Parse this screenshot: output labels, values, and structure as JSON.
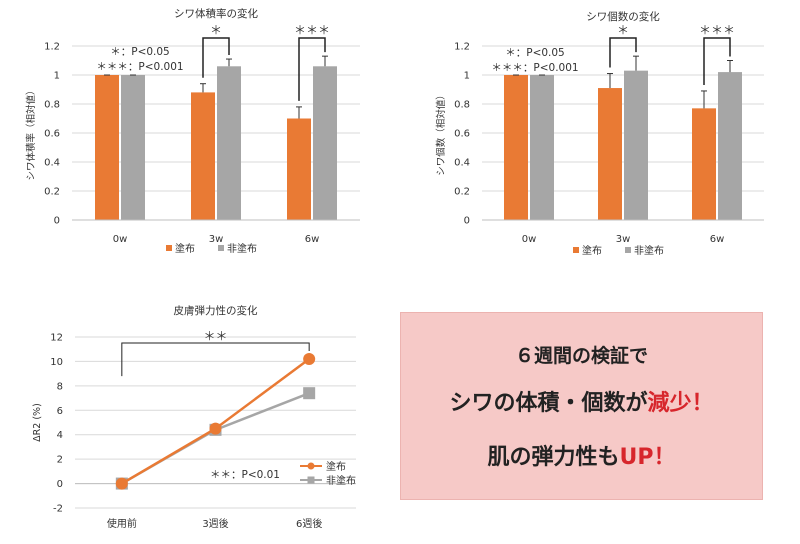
{
  "chart_data": [
    {
      "type": "bar",
      "title": "シワ体積率の変化",
      "ylabel": "シワ体積率（相対値）",
      "ylim": [
        0,
        1.2
      ],
      "yticks": [
        "0",
        "0.2",
        "0.4",
        "0.6",
        "0.8",
        "1",
        "1.2"
      ],
      "categories": [
        "0w",
        "3w",
        "6w"
      ],
      "series": [
        {
          "name": "塗布",
          "color": "#e97a34",
          "values": [
            1.0,
            0.88,
            0.7
          ],
          "errors": [
            0.0,
            0.06,
            0.08
          ]
        },
        {
          "name": "非塗布",
          "color": "#a6a6a6",
          "values": [
            1.0,
            1.06,
            1.06
          ],
          "errors": [
            0.0,
            0.05,
            0.07
          ]
        }
      ],
      "significance": [
        {
          "category": "3w",
          "label": "＊"
        },
        {
          "category": "6w",
          "label": "＊＊＊"
        }
      ],
      "notes": [
        "＊：P<0.05",
        "＊＊＊：P<0.001"
      ],
      "legend_position": "bottom"
    },
    {
      "type": "bar",
      "title": "シワ個数の変化",
      "ylabel": "シワ個数（相対値）",
      "ylim": [
        0,
        1.2
      ],
      "yticks": [
        "0",
        "0.2",
        "0.4",
        "0.6",
        "0.8",
        "1",
        "1.2"
      ],
      "categories": [
        "0w",
        "3w",
        "6w"
      ],
      "series": [
        {
          "name": "塗布",
          "color": "#e97a34",
          "values": [
            1.0,
            0.91,
            0.77
          ],
          "errors": [
            0.0,
            0.1,
            0.12
          ]
        },
        {
          "name": "非塗布",
          "color": "#a6a6a6",
          "values": [
            1.0,
            1.03,
            1.02
          ],
          "errors": [
            0.0,
            0.1,
            0.08
          ]
        }
      ],
      "significance": [
        {
          "category": "3w",
          "label": "＊"
        },
        {
          "category": "6w",
          "label": "＊＊＊"
        }
      ],
      "notes": [
        "＊：P<0.05",
        "＊＊＊：P<0.001"
      ],
      "legend_position": "bottom"
    },
    {
      "type": "line",
      "title": "皮膚弾力性の変化",
      "ylabel": "ΔR2 (%)",
      "ylim": [
        -2,
        12
      ],
      "yticks": [
        "-2",
        "0",
        "2",
        "4",
        "6",
        "8",
        "10",
        "12"
      ],
      "categories": [
        "使用前",
        "3週後",
        "6週後"
      ],
      "series": [
        {
          "name": "塗布",
          "color": "#e97a34",
          "marker": "circle",
          "values": [
            0,
            4.5,
            10.2
          ]
        },
        {
          "name": "非塗布",
          "color": "#a6a6a6",
          "marker": "square",
          "values": [
            0,
            4.4,
            7.4
          ]
        }
      ],
      "significance": [
        {
          "from": "使用前",
          "to": "6週後",
          "label": "＊＊"
        }
      ],
      "notes": [
        "＊＊：P<0.01"
      ],
      "legend_position": "right"
    }
  ],
  "callout": {
    "line1": "６週間の検証で",
    "line2_a": "シワの体積・個数が",
    "line2_b": "減少！",
    "line3_a": "肌の弾力性も",
    "line3_b": "UP！"
  }
}
